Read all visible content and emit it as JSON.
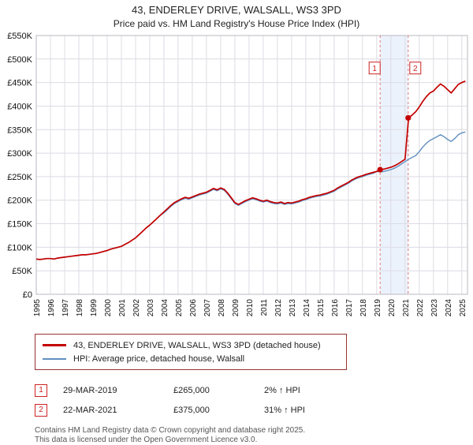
{
  "header": {
    "title": "43, ENDERLEY DRIVE, WALSALL, WS3 3PD",
    "subtitle": "Price paid vs. HM Land Registry's House Price Index (HPI)"
  },
  "chart_data": {
    "type": "line",
    "x_start": 1995,
    "x_step": 0.25,
    "xlim": [
      1995,
      2025.4
    ],
    "ylim": [
      0,
      550
    ],
    "y_tick_step": 50,
    "y_unit_suffix": "K",
    "currency": "£",
    "grid": true,
    "x_ticks": [
      1995,
      1996,
      1997,
      1998,
      1999,
      2000,
      2001,
      2002,
      2003,
      2004,
      2005,
      2006,
      2007,
      2008,
      2009,
      2010,
      2011,
      2012,
      2013,
      2014,
      2015,
      2016,
      2017,
      2018,
      2019,
      2020,
      2021,
      2022,
      2023,
      2024,
      2025
    ],
    "colors": {
      "band": "#dde7f7",
      "grid": "#dcdce4",
      "border": "#b8b8c0",
      "dashed": "#e07878",
      "marker": "#c40000"
    },
    "series": [
      {
        "name": "43, ENDERLEY DRIVE, WALSALL, WS3 3PD (detached house)",
        "color": "#c40000",
        "width": 1.7,
        "values_k": [
          75,
          74,
          75,
          76,
          76,
          75,
          77,
          78,
          79,
          80,
          81,
          82,
          83,
          84,
          84,
          85,
          86,
          87,
          89,
          91,
          93,
          96,
          98,
          100,
          102,
          106,
          110,
          115,
          120,
          127,
          134,
          141,
          147,
          154,
          161,
          168,
          175,
          182,
          189,
          195,
          199,
          203,
          206,
          204,
          207,
          210,
          213,
          215,
          217,
          221,
          225,
          222,
          226,
          223,
          215,
          205,
          195,
          191,
          195,
          199,
          202,
          205,
          203,
          200,
          198,
          200,
          197,
          195,
          194,
          196,
          193,
          195,
          194,
          196,
          198,
          201,
          203,
          206,
          208,
          210,
          211,
          213,
          215,
          218,
          221,
          226,
          230,
          234,
          238,
          243,
          247,
          250,
          252,
          255,
          257,
          259,
          261,
          265,
          266,
          268,
          270,
          273,
          277,
          282,
          287,
          375,
          381,
          388,
          398,
          410,
          420,
          428,
          432,
          440,
          447,
          442,
          435,
          428,
          437,
          446,
          450,
          453
        ]
      },
      {
        "name": "HPI: Average price, detached house, Walsall",
        "color": "#6090c0",
        "width": 1.4,
        "values_k": [
          75,
          74,
          75,
          76,
          76,
          75,
          77,
          78,
          79,
          80,
          81,
          82,
          83,
          84,
          84,
          85,
          86,
          87,
          89,
          91,
          93,
          96,
          98,
          100,
          102,
          106,
          110,
          115,
          120,
          127,
          134,
          141,
          147,
          154,
          161,
          168,
          173,
          180,
          187,
          193,
          197,
          201,
          204,
          202,
          205,
          208,
          211,
          213,
          215,
          219,
          223,
          220,
          224,
          221,
          213,
          203,
          193,
          189,
          193,
          197,
          200,
          203,
          201,
          198,
          196,
          198,
          195,
          193,
          192,
          194,
          191,
          193,
          192,
          194,
          196,
          199,
          201,
          204,
          206,
          208,
          209,
          211,
          213,
          216,
          219,
          224,
          228,
          232,
          236,
          241,
          245,
          248,
          250,
          253,
          255,
          257,
          261,
          260,
          261,
          263,
          265,
          268,
          272,
          277,
          282,
          287,
          291,
          295,
          303,
          313,
          321,
          327,
          331,
          335,
          339,
          335,
          329,
          325,
          331,
          339,
          343,
          345
        ]
      }
    ],
    "band": [
      2019.24,
      2021.22
    ],
    "sales": [
      {
        "n": "1",
        "x": 2019.24,
        "value_k": 265,
        "box_dx": -7,
        "date": "29-MAR-2019",
        "price": "£265,000",
        "hpi": "2% ↑ HPI"
      },
      {
        "n": "2",
        "x": 2021.22,
        "value_k": 375,
        "box_dx": 9,
        "date": "22-MAR-2021",
        "price": "£375,000",
        "hpi": "31% ↑ HPI"
      }
    ]
  },
  "footer": {
    "line1": "Contains HM Land Registry data © Crown copyright and database right 2025.",
    "line2": "This data is licensed under the Open Government Licence v3.0."
  }
}
